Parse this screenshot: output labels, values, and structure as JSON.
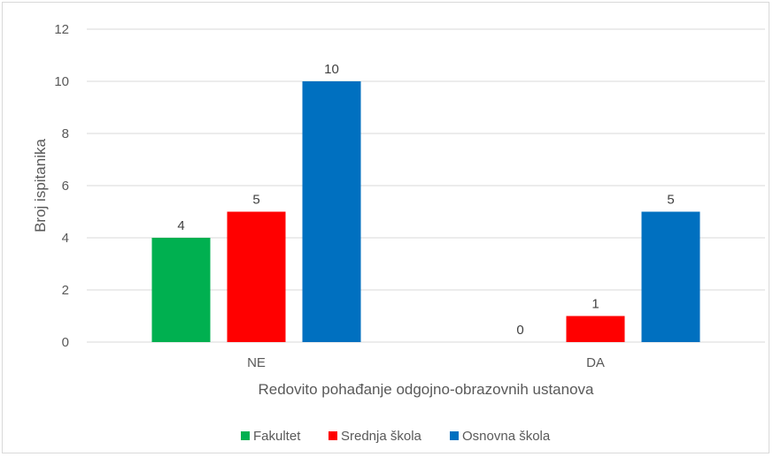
{
  "chart_data": {
    "type": "bar",
    "categories": [
      "NE",
      "DA"
    ],
    "series": [
      {
        "name": "Fakultet",
        "values": [
          4,
          0
        ],
        "color": "#00b050"
      },
      {
        "name": "Srednja škola",
        "values": [
          5,
          1
        ],
        "color": "#ff0000"
      },
      {
        "name": "Osnovna škola",
        "values": [
          10,
          5
        ],
        "color": "#0070c0"
      }
    ],
    "title": "",
    "xlabel": "Redovito pohađanje odgojno-obrazovnih ustanova",
    "ylabel": "Broj ispitanika",
    "ylim": [
      0,
      12
    ],
    "yticks": [
      0,
      2,
      4,
      6,
      8,
      10,
      12
    ],
    "grid": true,
    "legend": "bottom",
    "data_labels": true
  }
}
